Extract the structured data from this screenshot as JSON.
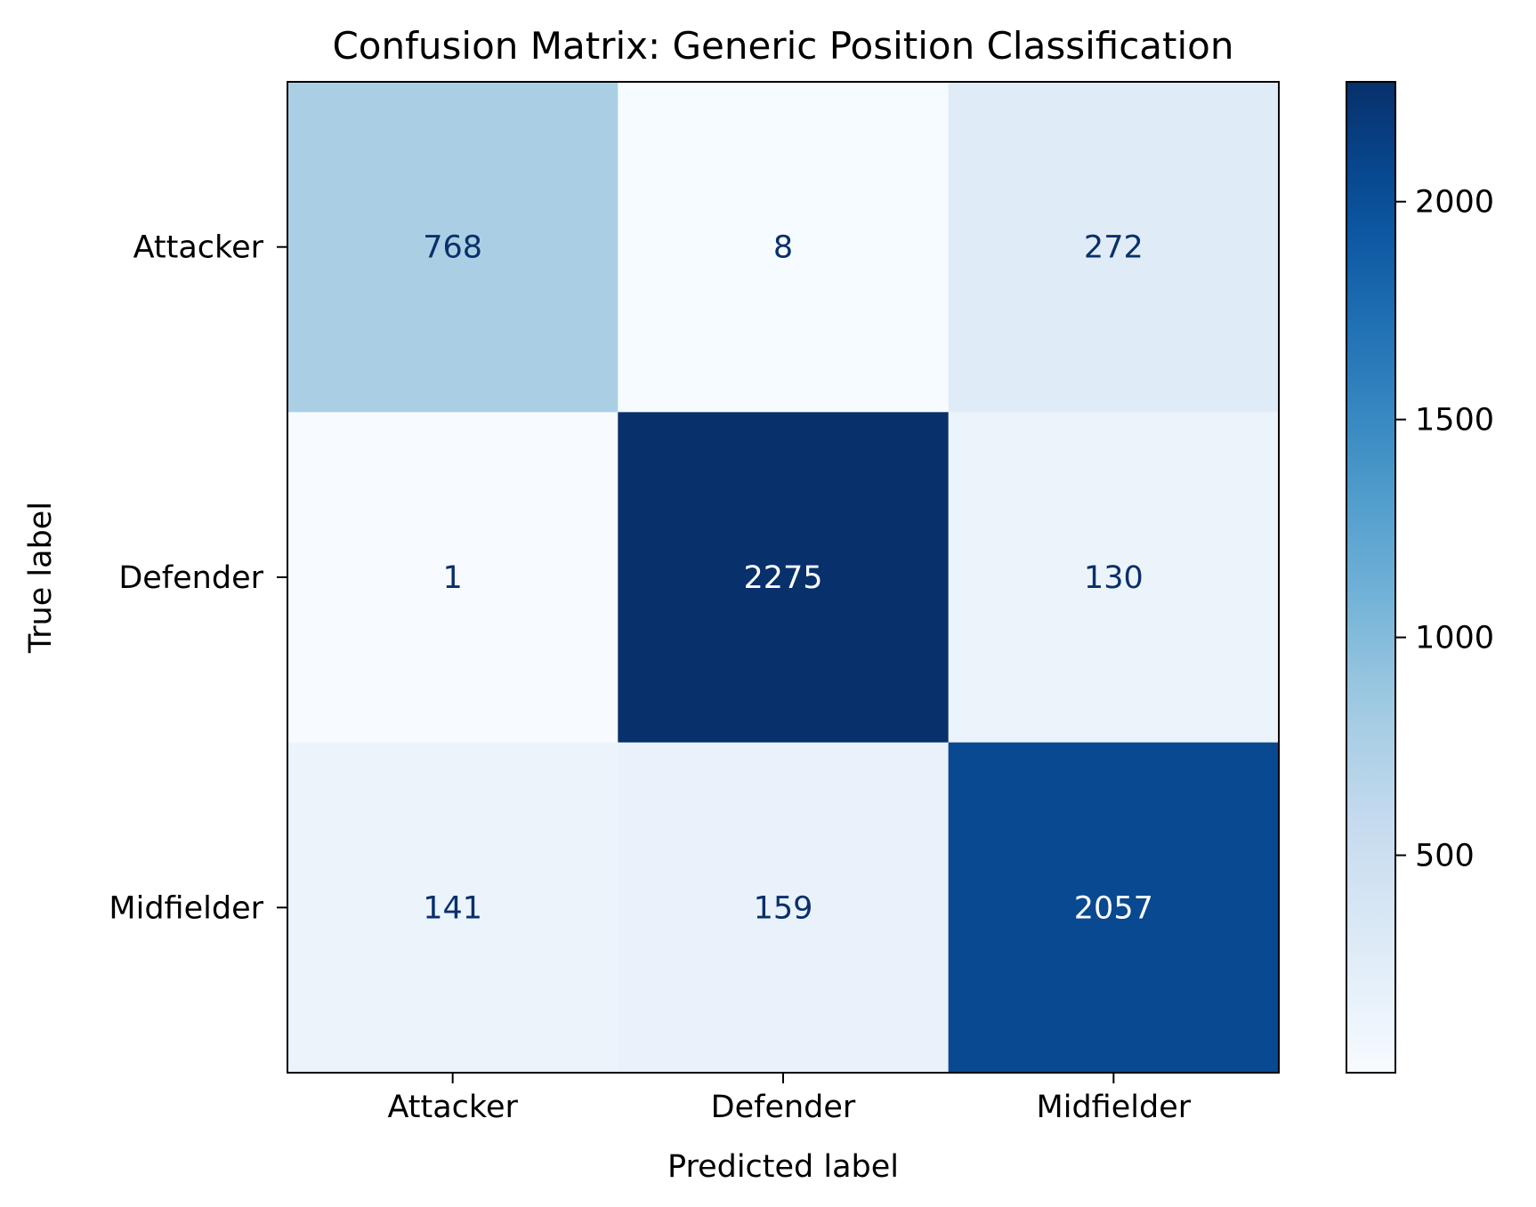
{
  "chart_data": {
    "type": "heatmap",
    "title": "Confusion Matrix: Generic Position Classification",
    "xlabel": "Predicted label",
    "ylabel": "True label",
    "x_categories": [
      "Attacker",
      "Defender",
      "Midfielder"
    ],
    "y_categories": [
      "Attacker",
      "Defender",
      "Midfielder"
    ],
    "values": [
      [
        768,
        8,
        272
      ],
      [
        1,
        2275,
        130
      ],
      [
        141,
        159,
        2057
      ]
    ],
    "colormap": "Blues",
    "color_range": [
      1,
      2275
    ],
    "colorbar_ticks": [
      500,
      1000,
      1500,
      2000
    ],
    "colorbar_tick_labels": [
      "500",
      "1000",
      "1500",
      "2000"
    ]
  }
}
